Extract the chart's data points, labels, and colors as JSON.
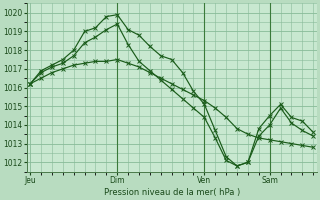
{
  "xlabel": "Pression niveau de la mer( hPa )",
  "bg_color": "#b8dcc0",
  "plot_bg_color": "#c8e8d0",
  "grid_color": "#88bb99",
  "line_color": "#1a5c1a",
  "vline_color": "#3a7a3a",
  "ylim": [
    1011.5,
    1020.5
  ],
  "yticks": [
    1012,
    1013,
    1014,
    1015,
    1016,
    1017,
    1018,
    1019,
    1020
  ],
  "day_labels": [
    "Jeu",
    "Dim",
    "Ven",
    "Sam"
  ],
  "day_positions": [
    0,
    8,
    16,
    22
  ],
  "xlim": [
    -0.3,
    26.3
  ],
  "line1_x": [
    0,
    1,
    2,
    3,
    4,
    5,
    6,
    7,
    8,
    9,
    10,
    11,
    12,
    13,
    14,
    15,
    16,
    17,
    18,
    19,
    20,
    21,
    22,
    23,
    24,
    25,
    26
  ],
  "line1_y": [
    1016.2,
    1016.9,
    1017.2,
    1017.5,
    1018.0,
    1019.0,
    1019.2,
    1019.8,
    1019.9,
    1019.1,
    1018.8,
    1018.2,
    1017.7,
    1017.5,
    1016.8,
    1015.8,
    1015.1,
    1013.7,
    1012.3,
    1011.8,
    1012.0,
    1013.8,
    1014.5,
    1015.1,
    1014.4,
    1014.2,
    1013.6
  ],
  "line2_x": [
    0,
    1,
    2,
    3,
    4,
    5,
    6,
    7,
    8,
    9,
    10,
    11,
    12,
    13,
    14,
    15,
    16,
    17,
    18,
    19,
    20,
    21,
    22,
    23,
    24,
    25,
    26
  ],
  "line2_y": [
    1016.2,
    1016.8,
    1017.1,
    1017.3,
    1017.7,
    1018.4,
    1018.7,
    1019.1,
    1019.4,
    1018.3,
    1017.4,
    1016.9,
    1016.4,
    1015.9,
    1015.4,
    1014.9,
    1014.4,
    1013.3,
    1012.1,
    1011.8,
    1012.0,
    1013.4,
    1014.0,
    1014.9,
    1014.1,
    1013.7,
    1013.4
  ],
  "line3_x": [
    0,
    1,
    2,
    3,
    4,
    5,
    6,
    7,
    8,
    9,
    10,
    11,
    12,
    13,
    14,
    15,
    16,
    17,
    18,
    19,
    20,
    21,
    22,
    23,
    24,
    25,
    26
  ],
  "line3_y": [
    1016.2,
    1016.5,
    1016.8,
    1017.0,
    1017.2,
    1017.3,
    1017.4,
    1017.4,
    1017.5,
    1017.3,
    1017.1,
    1016.8,
    1016.5,
    1016.2,
    1015.9,
    1015.6,
    1015.3,
    1014.9,
    1014.4,
    1013.8,
    1013.5,
    1013.3,
    1013.2,
    1013.1,
    1013.0,
    1012.9,
    1012.8
  ],
  "vline_positions": [
    8,
    16,
    22
  ]
}
